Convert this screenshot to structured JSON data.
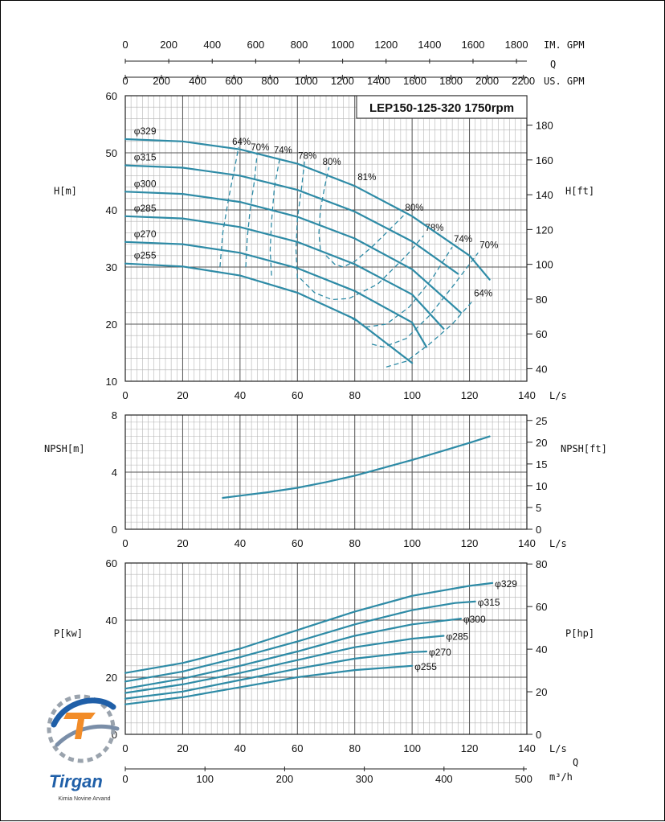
{
  "colors": {
    "curve": "#2e8ba6",
    "grid_major": "#555555",
    "grid_minor": "#b5b5b5",
    "logo_blue": "#1f5fa8",
    "logo_orange": "#f28c28"
  },
  "logo": {
    "name": "Tirgan",
    "subtitle": "Kimia Novine Arvand"
  },
  "chart_data": [
    {
      "type": "line",
      "panel": "head",
      "title": "LEP150-125-320 1750rpm",
      "xlabel": "L/s",
      "ylabel": "H[m]",
      "y2label": "H[ft]",
      "xlim": [
        0,
        140
      ],
      "ylim": [
        10,
        60
      ],
      "y2lim": [
        32.8,
        196.9
      ],
      "xticks": [
        "0",
        "20",
        "40",
        "60",
        "80",
        "100",
        "120",
        "140"
      ],
      "yticks": [
        "10",
        "20",
        "30",
        "40",
        "50",
        "60"
      ],
      "y2ticks": [
        "40",
        "60",
        "80",
        "100",
        "120",
        "140",
        "160",
        "180"
      ],
      "top_axes": [
        {
          "label": "IM. GPM",
          "ticks": [
            "0",
            "200",
            "400",
            "600",
            "800",
            "1000",
            "1200",
            "1400",
            "1600",
            "1800"
          ],
          "ls_per_unit": 0.07577
        },
        {
          "label": "Q",
          "ticks": [],
          "ls_per_unit": 0
        },
        {
          "label": "US. GPM",
          "ticks": [
            "0",
            "200",
            "400",
            "600",
            "800",
            "1000",
            "1200",
            "1400",
            "1600",
            "1800",
            "2000",
            "2200"
          ],
          "ls_per_unit": 0.06309
        }
      ],
      "grid": true,
      "series": [
        {
          "name": "φ329",
          "x": [
            0,
            20,
            40,
            60,
            80,
            100,
            120,
            127
          ],
          "y": [
            52.4,
            52.0,
            50.6,
            48.1,
            44.2,
            38.9,
            32.0,
            27.8
          ]
        },
        {
          "name": "φ315",
          "x": [
            0,
            20,
            40,
            60,
            80,
            100,
            116
          ],
          "y": [
            47.8,
            47.4,
            46.0,
            43.5,
            39.7,
            34.5,
            28.8
          ]
        },
        {
          "name": "φ300",
          "x": [
            0,
            20,
            40,
            60,
            80,
            100,
            117
          ],
          "y": [
            43.2,
            42.8,
            41.4,
            38.8,
            35.0,
            29.6,
            22.0
          ]
        },
        {
          "name": "φ285",
          "x": [
            0,
            20,
            40,
            60,
            80,
            100,
            111
          ],
          "y": [
            38.9,
            38.5,
            37.0,
            34.4,
            30.5,
            25.2,
            19.2
          ]
        },
        {
          "name": "φ270",
          "x": [
            0,
            20,
            40,
            60,
            80,
            100,
            105
          ],
          "y": [
            34.4,
            34.0,
            32.5,
            29.8,
            25.8,
            20.3,
            16.0
          ]
        },
        {
          "name": "φ255",
          "x": [
            0,
            20,
            40,
            60,
            80,
            100
          ],
          "y": [
            30.6,
            30.1,
            28.5,
            25.5,
            20.9,
            13.2
          ]
        }
      ],
      "efficiency": [
        {
          "label": "64%",
          "x": [
            33,
            34,
            36,
            38,
            39.5
          ],
          "y": [
            30.0,
            36.0,
            42.0,
            47.0,
            51.0
          ]
        },
        {
          "label": "70%",
          "x": [
            42,
            42.5,
            43.5,
            45,
            46
          ],
          "y": [
            30.0,
            35.0,
            40.0,
            45.0,
            50.0
          ]
        },
        {
          "label": "74%",
          "x": [
            51,
            50.5,
            51,
            52,
            54
          ],
          "y": [
            28.5,
            33.0,
            38.0,
            44.0,
            49.5
          ]
        },
        {
          "label": "78%",
          "x": [
            60,
            59.5,
            60,
            61.5,
            62.5
          ],
          "y": [
            28.0,
            33.0,
            38.5,
            44.0,
            48.5
          ]
        },
        {
          "label": "80%",
          "x": [
            68,
            67.5,
            68,
            69.5,
            71
          ],
          "y": [
            33.0,
            36.0,
            40.0,
            44.0,
            47.5
          ]
        },
        {
          "label": "80%",
          "x": [
            70,
            73,
            76,
            80,
            86,
            93,
            97
          ],
          "y": [
            32.0,
            30.5,
            30.0,
            31.0,
            33.5,
            37.0,
            39.0
          ]
        },
        {
          "label": "78%",
          "x": [
            61,
            66,
            72,
            78,
            88,
            98,
            104
          ],
          "y": [
            28.0,
            25.5,
            24.3,
            24.5,
            27.0,
            32.0,
            35.5
          ]
        },
        {
          "label": "74%",
          "x": [
            79,
            84,
            91,
            99,
            107,
            114
          ],
          "y": [
            21.0,
            19.5,
            20.0,
            23.0,
            28.0,
            33.5
          ]
        },
        {
          "label": "70%",
          "x": [
            86,
            90,
            98,
            106,
            114,
            123
          ],
          "y": [
            16.5,
            16.0,
            17.5,
            21.5,
            26.5,
            32.5
          ]
        },
        {
          "label": "64%",
          "x": [
            91,
            98,
            106,
            114,
            121
          ],
          "y": [
            12.5,
            13.5,
            16.5,
            20.0,
            24.0
          ]
        }
      ],
      "bep_label": "81%"
    },
    {
      "type": "line",
      "panel": "npsh",
      "xlabel": "L/s",
      "ylabel": "NPSH[m]",
      "y2label": "NPSH[ft]",
      "xlim": [
        0,
        140
      ],
      "ylim": [
        0,
        8
      ],
      "y2lim": [
        0,
        26.25
      ],
      "xticks": [
        "0",
        "20",
        "40",
        "60",
        "80",
        "100",
        "120",
        "140"
      ],
      "yticks": [
        "0",
        "4",
        "8"
      ],
      "y2ticks": [
        "0",
        "5",
        "10",
        "15",
        "20",
        "25"
      ],
      "grid": true,
      "series": [
        {
          "name": "",
          "x": [
            34,
            40,
            50,
            60,
            70,
            80,
            90,
            100,
            110,
            120,
            127
          ],
          "y": [
            2.2,
            2.35,
            2.6,
            2.9,
            3.3,
            3.75,
            4.3,
            4.85,
            5.45,
            6.05,
            6.5
          ]
        }
      ]
    },
    {
      "type": "line",
      "panel": "power",
      "xlabel": "L/s",
      "x2label": "Q",
      "ylabel": "P[kw]",
      "y2label": "P[hp]",
      "xlim": [
        0,
        140
      ],
      "ylim": [
        0,
        60
      ],
      "y2lim": [
        0,
        80.46
      ],
      "xticks": [
        "0",
        "20",
        "40",
        "60",
        "80",
        "100",
        "120",
        "140"
      ],
      "yticks": [
        "0",
        "20",
        "40",
        "60"
      ],
      "y2ticks": [
        "0",
        "20",
        "40",
        "60",
        "80"
      ],
      "bottom_axis": {
        "label": "m³/h",
        "ticks": [
          "0",
          "100",
          "200",
          "300",
          "400",
          "500"
        ],
        "ls_per_unit": 0.27778
      },
      "grid": true,
      "series": [
        {
          "name": "φ329",
          "x": [
            0,
            20,
            40,
            60,
            80,
            100,
            120,
            128
          ],
          "y": [
            21.5,
            25.0,
            30.0,
            36.5,
            43.0,
            48.5,
            52.0,
            53.0
          ]
        },
        {
          "name": "φ315",
          "x": [
            0,
            20,
            40,
            60,
            80,
            100,
            115,
            122
          ],
          "y": [
            18.5,
            22.0,
            27.0,
            32.5,
            38.5,
            43.5,
            46.0,
            46.5
          ]
        },
        {
          "name": "φ300",
          "x": [
            0,
            20,
            40,
            60,
            80,
            100,
            117
          ],
          "y": [
            16.0,
            19.5,
            24.0,
            29.0,
            34.5,
            38.5,
            40.5
          ]
        },
        {
          "name": "φ285",
          "x": [
            0,
            20,
            40,
            60,
            80,
            100,
            111
          ],
          "y": [
            14.5,
            17.5,
            21.5,
            26.0,
            30.5,
            33.5,
            34.5
          ]
        },
        {
          "name": "φ270",
          "x": [
            0,
            20,
            40,
            60,
            80,
            100,
            105
          ],
          "y": [
            12.5,
            15.0,
            19.0,
            23.0,
            26.5,
            28.8,
            29.0
          ]
        },
        {
          "name": "φ255",
          "x": [
            0,
            20,
            40,
            60,
            80,
            100
          ],
          "y": [
            10.5,
            13.0,
            16.5,
            20.0,
            22.5,
            24.0
          ]
        }
      ]
    }
  ]
}
